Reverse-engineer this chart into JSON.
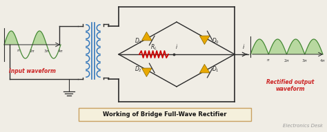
{
  "bg_color": "#f0ede5",
  "title_text": "Working of Bridge Full-Wave Rectifier",
  "title_box_color": "#f5f0dc",
  "title_border_color": "#c8a060",
  "watermark": "Electronics Desk",
  "input_label": "Input waveform",
  "output_label": "Rectified output\nwaveform",
  "input_color": "#b8d8a0",
  "output_color": "#b8d8a0",
  "input_label_color": "#cc2222",
  "output_label_color": "#cc2222",
  "diode_color": "#e8a800",
  "wire_color": "#2a2a2a",
  "resistor_color": "#cc0000",
  "transformer_color": "#3377bb",
  "tick_color": "#444444",
  "sine_color": "#448833",
  "box_wire_color": "#555555"
}
